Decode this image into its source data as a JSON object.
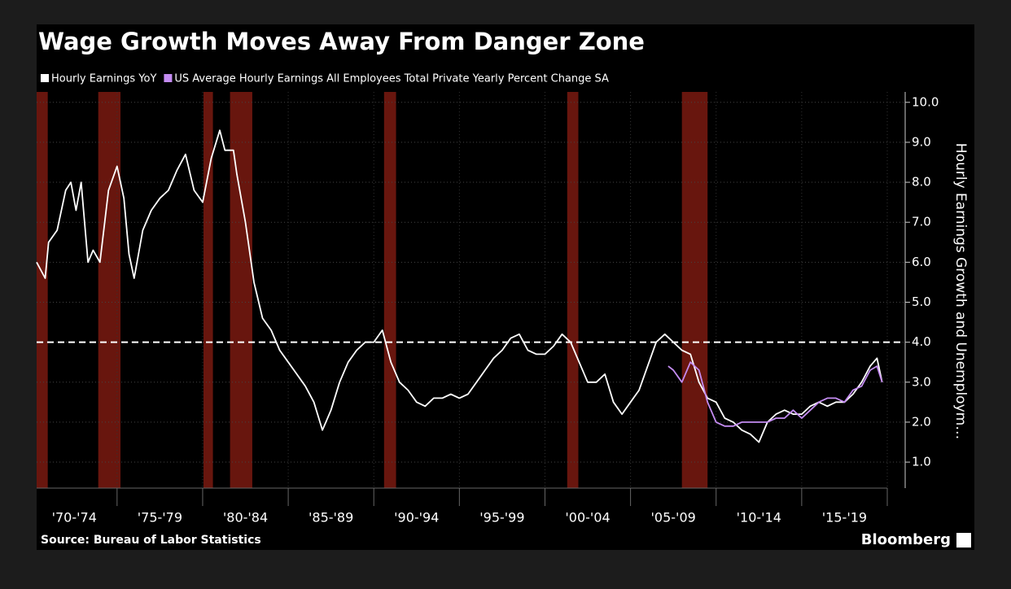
{
  "chart_data": {
    "type": "line",
    "title": "Wage Growth Moves Away From Danger Zone",
    "y_axis_label": "Hourly Earnings Growth and Unemploym…",
    "source": "Source: Bureau of Labor Statistics",
    "brand": "Bloomberg",
    "xlim": [
      1970.3,
      2020
    ],
    "ylim": [
      0.35,
      10.26
    ],
    "xticks": [
      {
        "value": 1972.5,
        "label": "'70-'74"
      },
      {
        "value": 1977.5,
        "label": "'75-'79"
      },
      {
        "value": 1982.5,
        "label": "'80-'84"
      },
      {
        "value": 1987.5,
        "label": "'85-'89"
      },
      {
        "value": 1992.5,
        "label": "'90-'94"
      },
      {
        "value": 1997.5,
        "label": "'95-'99"
      },
      {
        "value": 2002.5,
        "label": "'00-'04"
      },
      {
        "value": 2007.5,
        "label": "'05-'09"
      },
      {
        "value": 2012.5,
        "label": "'10-'14"
      },
      {
        "value": 2017.5,
        "label": "'15-'19"
      }
    ],
    "yticks": [
      {
        "value": 1,
        "label": "1.0"
      },
      {
        "value": 2,
        "label": "2.0"
      },
      {
        "value": 3,
        "label": "3.0"
      },
      {
        "value": 4,
        "label": "4.0"
      },
      {
        "value": 5,
        "label": "5.0"
      },
      {
        "value": 6,
        "label": "6.0"
      },
      {
        "value": 7,
        "label": "7.0"
      },
      {
        "value": 8,
        "label": "8.0"
      },
      {
        "value": 9,
        "label": "9.0"
      },
      {
        "value": 10,
        "label": "10.0"
      }
    ],
    "grid": true,
    "threshold": 4,
    "recession_color": "#7a1a10",
    "recessions": [
      [
        1970.3,
        1970.95
      ],
      [
        1973.9,
        1975.2
      ],
      [
        1980.05,
        1980.6
      ],
      [
        1981.6,
        1982.9
      ],
      [
        1990.6,
        1991.3
      ],
      [
        2001.3,
        2001.95
      ],
      [
        2008.0,
        2009.5
      ]
    ],
    "series": [
      {
        "name": "Hourly Earnings YoY",
        "color": "#ffffff",
        "x": [
          1970.3,
          1970.8,
          1971.0,
          1971.5,
          1972.0,
          1972.3,
          1972.6,
          1972.9,
          1973.3,
          1973.6,
          1974.0,
          1974.5,
          1975.0,
          1975.4,
          1975.7,
          1976.0,
          1976.5,
          1977.0,
          1977.5,
          1978.0,
          1978.5,
          1979.0,
          1979.5,
          1980.0,
          1980.5,
          1981.0,
          1981.3,
          1981.8,
          1982.0,
          1982.5,
          1983.0,
          1983.5,
          1984.0,
          1984.5,
          1985.0,
          1985.5,
          1986.0,
          1986.5,
          1987.0,
          1987.5,
          1988.0,
          1988.5,
          1989.0,
          1989.5,
          1990.0,
          1990.5,
          1991.0,
          1991.5,
          1992.0,
          1992.5,
          1993.0,
          1993.5,
          1994.0,
          1994.5,
          1995.0,
          1995.5,
          1996.0,
          1996.5,
          1997.0,
          1997.5,
          1998.0,
          1998.5,
          1999.0,
          1999.5,
          2000.0,
          2000.5,
          2001.0,
          2001.5,
          2002.0,
          2002.5,
          2003.0,
          2003.5,
          2004.0,
          2004.5,
          2005.0,
          2005.5,
          2006.0,
          2006.5,
          2007.0,
          2007.5,
          2008.0,
          2008.5,
          2009.0,
          2009.5,
          2010.0,
          2010.5,
          2011.0,
          2011.5,
          2012.0,
          2012.5,
          2013.0,
          2013.5,
          2014.0,
          2014.5,
          2015.0,
          2015.5,
          2016.0,
          2016.5,
          2017.0,
          2017.5,
          2018.0,
          2018.5,
          2019.0,
          2019.4,
          2019.7
        ],
        "values": [
          6.0,
          5.6,
          6.5,
          6.8,
          7.8,
          8.0,
          7.3,
          8.0,
          6.0,
          6.3,
          6.0,
          7.8,
          8.4,
          7.6,
          6.2,
          5.6,
          6.8,
          7.3,
          7.6,
          7.8,
          8.3,
          8.7,
          7.8,
          7.5,
          8.6,
          9.3,
          8.8,
          8.8,
          8.2,
          7.0,
          5.5,
          4.6,
          4.3,
          3.8,
          3.5,
          3.2,
          2.9,
          2.5,
          1.8,
          2.3,
          3.0,
          3.5,
          3.8,
          4.0,
          4.0,
          4.3,
          3.5,
          3.0,
          2.8,
          2.5,
          2.4,
          2.6,
          2.6,
          2.7,
          2.6,
          2.7,
          3.0,
          3.3,
          3.6,
          3.8,
          4.1,
          4.2,
          3.8,
          3.7,
          3.7,
          3.9,
          4.2,
          4.0,
          3.5,
          3.0,
          3.0,
          3.2,
          2.5,
          2.2,
          2.5,
          2.8,
          3.4,
          4.0,
          4.2,
          4.0,
          3.8,
          3.7,
          3.0,
          2.6,
          2.5,
          2.1,
          2.0,
          1.8,
          1.7,
          1.5,
          2.0,
          2.2,
          2.3,
          2.2,
          2.2,
          2.4,
          2.5,
          2.4,
          2.5,
          2.5,
          2.7,
          3.0,
          3.4,
          3.6,
          3.0
        ]
      },
      {
        "name": "US Average Hourly Earnings All Employees Total Private Yearly Percent Change SA",
        "color": "#c48cf2",
        "x": [
          2007.2,
          2007.5,
          2008.0,
          2008.5,
          2009.0,
          2009.5,
          2010.0,
          2010.5,
          2011.0,
          2011.5,
          2012.0,
          2012.5,
          2013.0,
          2013.5,
          2014.0,
          2014.5,
          2015.0,
          2015.5,
          2016.0,
          2016.5,
          2017.0,
          2017.5,
          2018.0,
          2018.5,
          2019.0,
          2019.4,
          2019.7
        ],
        "values": [
          3.4,
          3.3,
          3.0,
          3.5,
          3.3,
          2.5,
          2.0,
          1.9,
          1.9,
          2.0,
          2.0,
          2.0,
          2.0,
          2.1,
          2.1,
          2.3,
          2.1,
          2.3,
          2.5,
          2.6,
          2.6,
          2.5,
          2.8,
          2.9,
          3.3,
          3.4,
          3.0
        ]
      }
    ]
  }
}
